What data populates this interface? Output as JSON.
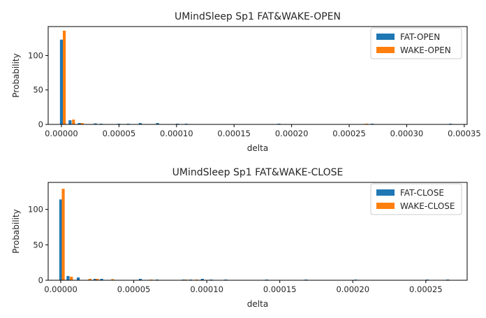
{
  "chart_data": [
    {
      "type": "bar",
      "title": "UMindSleep Sp1 FAT&WAKE-OPEN",
      "xlabel": "delta",
      "ylabel": "Probability",
      "xlim": [
        -1.15e-05,
        0.0003525
      ],
      "ylim": [
        0,
        142
      ],
      "xticks": [
        0,
        5e-05,
        0.0001,
        0.00015,
        0.0002,
        0.00025,
        0.0003,
        0.00035
      ],
      "xtick_labels": [
        "0.00000",
        "0.00005",
        "0.00010",
        "0.00015",
        "0.00020",
        "0.00025",
        "0.00030",
        "0.00035"
      ],
      "yticks": [
        0,
        50,
        100
      ],
      "ytick_labels": [
        "0",
        "50",
        "100"
      ],
      "legend_position": "top-right",
      "grid": false,
      "series": [
        {
          "name": "FAT-OPEN",
          "color": "#1f77b4",
          "x": [
            0.0,
            7.5e-06,
            1.55e-05,
            2.95e-05,
            3.45e-05,
            5e-05,
            5.8e-05,
            6.85e-05,
            8.35e-05,
            0.000101,
            0.0001085,
            0.000189,
            0.00027,
            0.000338
          ],
          "values": [
            123,
            6,
            2,
            1.5,
            1.0,
            1.0,
            1.0,
            2.0,
            2.0,
            1.0,
            1.0,
            1.0,
            1.0,
            1.0
          ]
        },
        {
          "name": "WAKE-OPEN",
          "color": "#ff7f0e",
          "x": [
            2.5e-06,
            1.05e-05,
            1.8e-05,
            0.000265
          ],
          "values": [
            136,
            7,
            2,
            1.0
          ]
        }
      ]
    },
    {
      "type": "bar",
      "title": "UMindSleep Sp1 FAT&WAKE-CLOSE",
      "xlabel": "delta",
      "ylabel": "Probability",
      "xlim": [
        -8.6e-06,
        0.0002783
      ],
      "ylim": [
        0,
        138
      ],
      "xticks": [
        0,
        5e-05,
        0.0001,
        0.00015,
        0.0002,
        0.00025
      ],
      "xtick_labels": [
        "0.00000",
        "0.00005",
        "0.00010",
        "0.00015",
        "0.00020",
        "0.00025"
      ],
      "yticks": [
        0,
        50,
        100
      ],
      "ytick_labels": [
        "0",
        "50",
        "100"
      ],
      "legend_position": "top-right",
      "grid": false,
      "series": [
        {
          "name": "FAT-CLOSE",
          "color": "#1f77b4",
          "x": [
            0.0,
            5e-06,
            1.2e-05,
            2.35e-05,
            2.8e-05,
            5.45e-05,
            6.6e-05,
            8.4e-05,
            8.9e-05,
            9.7e-05,
            0.000103,
            0.000113,
            0.000141,
            0.000168,
            0.000202,
            0.000251,
            0.000265
          ],
          "values": [
            114,
            6,
            4,
            2.0,
            2.0,
            2.0,
            1.0,
            1.0,
            1.0,
            2.0,
            1.0,
            1.0,
            1.0,
            1.0,
            1.0,
            1.0,
            1.0
          ],
          "note": ""
        },
        {
          "name": "WAKE-CLOSE",
          "color": "#ff7f0e",
          "x": [
            1.7e-06,
            7.3e-06,
            2e-05,
            2.5e-05,
            3.55e-05,
            6.2e-05,
            8.6e-05,
            9.3e-05
          ],
          "values": [
            129,
            5,
            2.0,
            2.0,
            1.5,
            1.0,
            1.0,
            1.0
          ]
        }
      ]
    }
  ]
}
